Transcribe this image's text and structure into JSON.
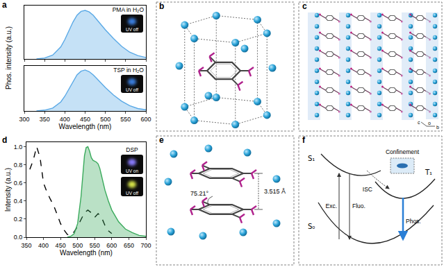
{
  "chart_data": [
    {
      "type": "area",
      "x": [
        330,
        350,
        370,
        390,
        400,
        410,
        420,
        430,
        440,
        450,
        460,
        470,
        480,
        490,
        500,
        520,
        540,
        560,
        580,
        600
      ],
      "series": [
        {
          "name": "PMA in H₂O",
          "color": "#5aa9e6",
          "values": [
            0,
            0.02,
            0.08,
            0.25,
            0.4,
            0.58,
            0.76,
            0.9,
            0.98,
            1.0,
            0.97,
            0.9,
            0.8,
            0.7,
            0.6,
            0.42,
            0.26,
            0.14,
            0.07,
            0.03
          ]
        }
      ],
      "xlim": [
        300,
        600
      ],
      "xticks": [
        300,
        350,
        400,
        450,
        500,
        550,
        600
      ],
      "ylim": [
        0,
        1.1
      ],
      "y_label": "Phos. intensity (a.u.)",
      "tick_labels": false,
      "annotations": [
        "UV off"
      ]
    },
    {
      "type": "area",
      "x": [
        330,
        350,
        370,
        390,
        400,
        410,
        420,
        430,
        440,
        450,
        460,
        470,
        480,
        490,
        500,
        520,
        540,
        560,
        580,
        600
      ],
      "series": [
        {
          "name": "TSP in H₂O",
          "color": "#5aa9e6",
          "values": [
            0,
            0.02,
            0.07,
            0.22,
            0.36,
            0.54,
            0.72,
            0.88,
            0.97,
            1.0,
            0.96,
            0.88,
            0.78,
            0.67,
            0.57,
            0.39,
            0.24,
            0.13,
            0.06,
            0.03
          ]
        }
      ],
      "xlim": [
        300,
        600
      ],
      "xticks": [
        300,
        350,
        400,
        450,
        500,
        550,
        600
      ],
      "ylim": [
        0,
        1.1
      ],
      "x_label": "Wavelength (nm)",
      "tick_labels": "x",
      "annotations": [
        "UV off"
      ]
    },
    {
      "type": "line",
      "series": [
        {
          "type": "line",
          "line_style": "dashed",
          "color": "#000000",
          "x": [
            360,
            370,
            380,
            390,
            400,
            410,
            420,
            430,
            440,
            450,
            460,
            470,
            480,
            490,
            500,
            510,
            520,
            530,
            540,
            550,
            560,
            570,
            580,
            590,
            600
          ],
          "values": [
            0.75,
            0.85,
            1.0,
            0.88,
            0.6,
            0.5,
            0.42,
            0.35,
            0.25,
            0.15,
            0.08,
            0.03,
            0.02,
            0.06,
            0.12,
            0.2,
            0.27,
            0.3,
            0.27,
            0.22,
            0.26,
            0.22,
            0.13,
            0.07,
            0.04
          ]
        },
        {
          "type": "area",
          "line_style": "solid",
          "color": "#3aaa5c",
          "x": [
            470,
            480,
            490,
            500,
            510,
            515,
            520,
            525,
            530,
            535,
            540,
            545,
            550,
            555,
            560,
            565,
            570,
            580,
            590,
            600,
            620,
            640,
            660,
            680,
            700
          ],
          "values": [
            0,
            0.01,
            0.04,
            0.15,
            0.45,
            0.7,
            0.9,
            0.99,
            1.0,
            0.95,
            0.88,
            0.85,
            0.84,
            0.83,
            0.81,
            0.76,
            0.68,
            0.52,
            0.4,
            0.3,
            0.17,
            0.09,
            0.05,
            0.02,
            0.01
          ]
        }
      ],
      "xlim": [
        350,
        700
      ],
      "xticks": [
        350,
        400,
        450,
        500,
        550,
        600,
        650,
        700
      ],
      "ylim": [
        0,
        1.05
      ],
      "yticks": [
        {
          "value": 0,
          "label": "0.0"
        },
        0.2,
        0.4,
        0.6,
        0.8,
        {
          "value": 1,
          "label": "1.0"
        }
      ],
      "x_label": "Wavelength (nm)",
      "y_label": "Intensity (a.u.)",
      "tick_labels": true,
      "annotations": [
        "DSP",
        "UV on",
        "UV off"
      ]
    }
  ],
  "panel_letters": [
    "a",
    "b",
    "c",
    "d",
    "e",
    "f"
  ],
  "diagrams": {
    "c": {
      "axis_labels": [
        "c",
        "o",
        "b"
      ]
    },
    "e": {
      "distance": "3.515 Å",
      "angle": "75.21°"
    },
    "f": {
      "label": "Confinement",
      "states": [
        "S₁",
        "T₁",
        "S₀"
      ],
      "transitions": [
        "Exc.",
        "ISC",
        "Fluo.",
        "Phos."
      ]
    }
  }
}
